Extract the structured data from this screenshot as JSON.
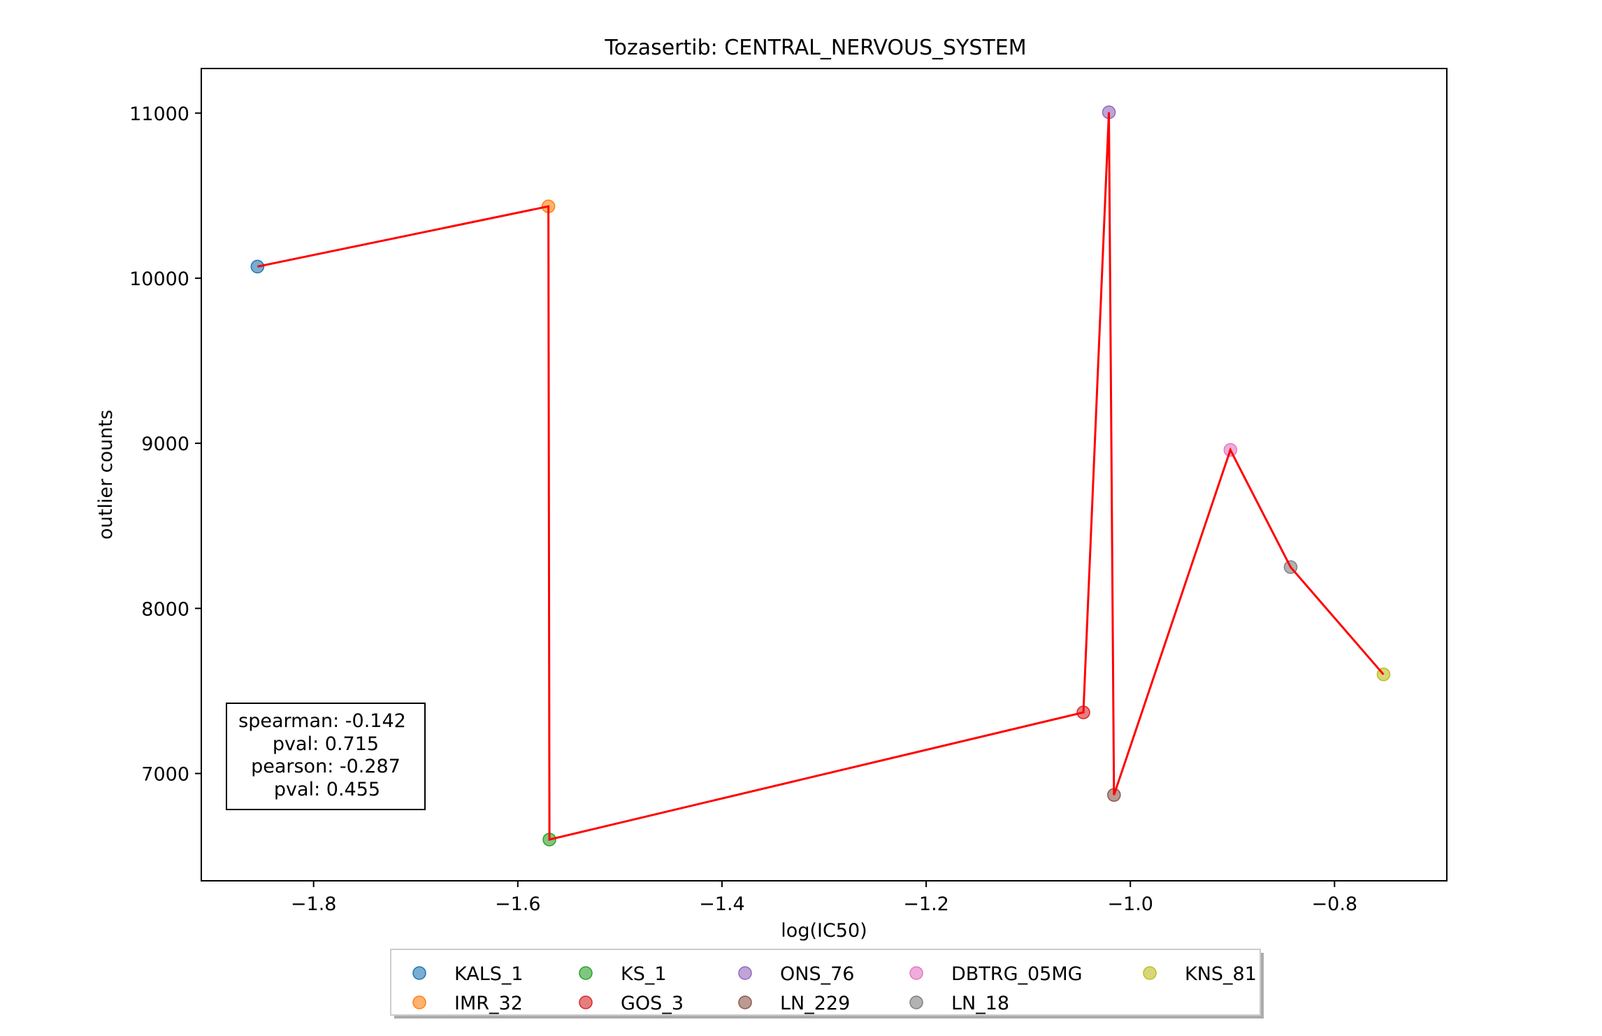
{
  "chart_data": {
    "type": "scatter",
    "title": "Tozasertib: CENTRAL_NERVOUS_SYSTEM",
    "xlabel": "log(IC50)",
    "ylabel": "outlier counts",
    "xlim": [
      -1.91,
      -0.69
    ],
    "ylim": [
      6350,
      11270
    ],
    "xticks": [
      {
        "value": -1.8,
        "label": "−1.8"
      },
      {
        "value": -1.6,
        "label": "−1.6"
      },
      {
        "value": -1.4,
        "label": "−1.4"
      },
      {
        "value": -1.2,
        "label": "−1.2"
      },
      {
        "value": -1.0,
        "label": "−1.0"
      },
      {
        "value": -0.8,
        "label": "−0.8"
      }
    ],
    "yticks": [
      {
        "value": 7000,
        "label": "7000"
      },
      {
        "value": 8000,
        "label": "8000"
      },
      {
        "value": 9000,
        "label": "9000"
      },
      {
        "value": 10000,
        "label": "10000"
      },
      {
        "value": 11000,
        "label": "11000"
      }
    ],
    "series": [
      {
        "name": "KALS_1",
        "x": -1.855,
        "y": 10070,
        "color": "#1f77b4"
      },
      {
        "name": "IMR_32",
        "x": -1.57,
        "y": 10435,
        "color": "#ff7f0e"
      },
      {
        "name": "KS_1",
        "x": -1.569,
        "y": 6600,
        "color": "#2ca02c"
      },
      {
        "name": "GOS_3",
        "x": -1.046,
        "y": 7370,
        "color": "#d62728"
      },
      {
        "name": "ONS_76",
        "x": -1.021,
        "y": 11005,
        "color": "#9467bd"
      },
      {
        "name": "LN_229",
        "x": -1.016,
        "y": 6870,
        "color": "#8c564b"
      },
      {
        "name": "DBTRG_05MG",
        "x": -0.902,
        "y": 8960,
        "color": "#e377c2"
      },
      {
        "name": "LN_18",
        "x": -0.843,
        "y": 8250,
        "color": "#7f7f7f"
      },
      {
        "name": "KNS_81",
        "x": -0.752,
        "y": 7600,
        "color": "#bcbd22"
      }
    ],
    "line_color": "#ff0000",
    "grid": false,
    "legend_position": "bottom-center",
    "annotation": [
      "spearman: -0.142",
      "pval: 0.715",
      "pearson: -0.287",
      "pval: 0.455"
    ]
  }
}
